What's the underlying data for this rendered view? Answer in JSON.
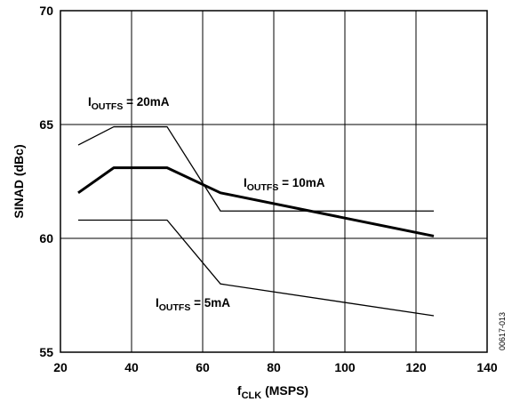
{
  "chart_data": {
    "type": "line",
    "title": "",
    "xlabel": {
      "main": "f",
      "sub": "CLK",
      "rest": " (MSPS)"
    },
    "ylabel": "SINAD (dBc)",
    "xlim": [
      20,
      140
    ],
    "ylim": [
      55,
      70
    ],
    "xticks": [
      20,
      40,
      60,
      80,
      100,
      120,
      140
    ],
    "yticks": [
      55,
      60,
      65,
      70
    ],
    "grid": true,
    "series": [
      {
        "name": "20mA",
        "line_weight": "thin",
        "x": [
          25,
          35,
          50,
          65,
          125
        ],
        "y": [
          64.1,
          64.9,
          64.9,
          61.2,
          61.2
        ]
      },
      {
        "name": "10mA",
        "line_weight": "thick",
        "x": [
          25,
          35,
          50,
          65,
          125
        ],
        "y": [
          62.0,
          63.1,
          63.1,
          62.0,
          60.1
        ]
      },
      {
        "name": "5mA",
        "line_weight": "thin",
        "x": [
          25,
          35,
          50,
          65,
          125
        ],
        "y": [
          60.8,
          60.8,
          60.8,
          58.0,
          56.6
        ]
      }
    ],
    "annotations": [
      {
        "series": "20mA",
        "prefix": "I",
        "sub": "OUTFS",
        "text": " = 20mA"
      },
      {
        "series": "10mA",
        "prefix": "I",
        "sub": "OUTFS",
        "text": " = 10mA"
      },
      {
        "series": "5mA",
        "prefix": "I",
        "sub": "OUTFS",
        "text": " = 5mA"
      }
    ],
    "figure_code": "00617-013"
  }
}
